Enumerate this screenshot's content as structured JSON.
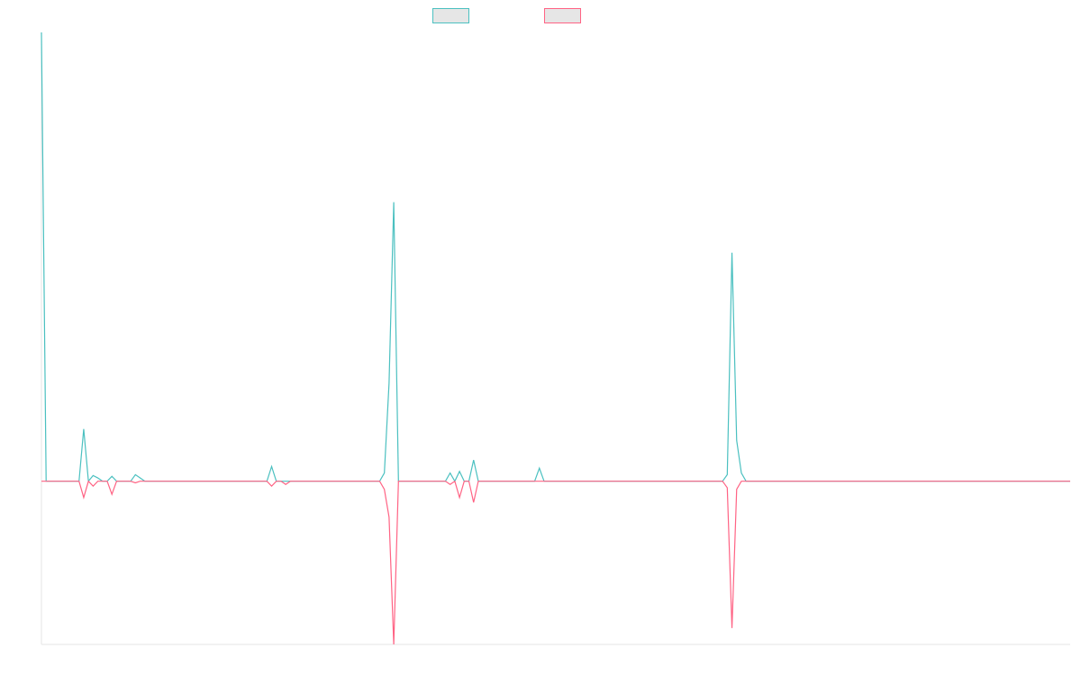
{
  "chart_data": {
    "type": "area",
    "title": "",
    "xlabel": "",
    "ylabel": "",
    "x_count": 220,
    "ylim": [
      -1,
      2.75
    ],
    "grid": false,
    "legend": {
      "placement": "top-center",
      "entries": [
        {
          "name": "",
          "color": "#4bc0c0",
          "fill": "#e6e6e6"
        },
        {
          "name": "",
          "color": "#ff6384",
          "fill": "#e6e6e6"
        }
      ]
    },
    "series": [
      {
        "name": "",
        "color": "#4bc0c0",
        "points": [
          [
            0,
            2.75
          ],
          [
            9,
            0.32
          ],
          [
            11,
            0.035
          ],
          [
            12,
            0.02
          ],
          [
            15,
            0.03
          ],
          [
            20,
            0.04
          ],
          [
            21,
            0.02
          ],
          [
            49,
            0.09
          ],
          [
            73,
            0.05
          ],
          [
            74,
            0.6
          ],
          [
            75,
            1.71
          ],
          [
            87,
            0.05
          ],
          [
            89,
            0.06
          ],
          [
            92,
            0.13
          ],
          [
            106,
            0.08
          ],
          [
            146,
            0.04
          ],
          [
            147,
            1.4
          ],
          [
            148,
            0.25
          ],
          [
            149,
            0.05
          ]
        ]
      },
      {
        "name": "",
        "color": "#ff6384",
        "points": [
          [
            9,
            -0.1
          ],
          [
            11,
            -0.03
          ],
          [
            15,
            -0.08
          ],
          [
            20,
            -0.01
          ],
          [
            49,
            -0.03
          ],
          [
            52,
            -0.02
          ],
          [
            73,
            -0.05
          ],
          [
            74,
            -0.22
          ],
          [
            75,
            -1.0
          ],
          [
            87,
            -0.02
          ],
          [
            89,
            -0.1
          ],
          [
            92,
            -0.13
          ],
          [
            146,
            -0.04
          ],
          [
            147,
            -0.9
          ],
          [
            148,
            -0.05
          ]
        ]
      }
    ]
  }
}
